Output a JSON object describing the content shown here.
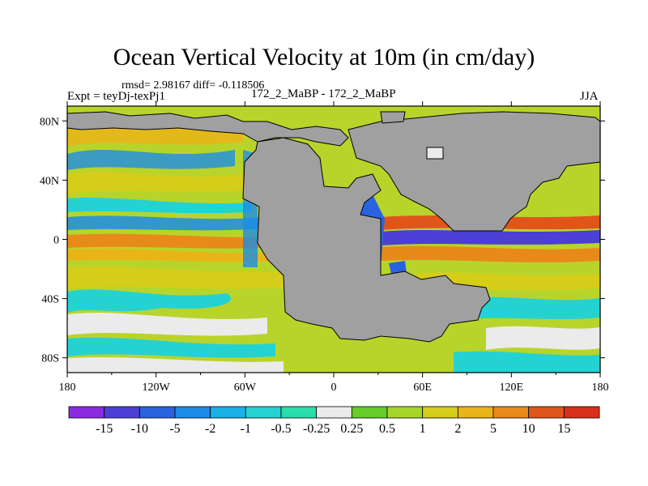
{
  "chart_data": {
    "type": "heatmap",
    "title": "Ocean Vertical Velocity at 10m (in cm/day)",
    "stats_label": "rmsd= 2.98167 diff= -0.118506",
    "experiment_label": "Expt = teyDj-texPj1",
    "comparison_label": "172_2_MaBP - 172_2_MaBP",
    "season_label": "JJA",
    "x_ticks": [
      "180",
      "120W",
      "60W",
      "0",
      "60E",
      "120E",
      "180"
    ],
    "x_tick_values": [
      -180,
      -120,
      -60,
      0,
      60,
      120,
      180
    ],
    "y_ticks": [
      "80N",
      "40N",
      "0",
      "40S",
      "80S"
    ],
    "y_tick_values": [
      80,
      40,
      0,
      -40,
      -80
    ],
    "xlim": [
      -180,
      180
    ],
    "ylim": [
      -90,
      90
    ],
    "colorbar": {
      "labels": [
        "-15",
        "-10",
        "-5",
        "-2",
        "-1",
        "-0.5",
        "-0.25",
        "0.25",
        "0.5",
        "1",
        "2",
        "5",
        "10",
        "15"
      ],
      "colors": [
        "#8a2be2",
        "#4b3fd6",
        "#2a63e0",
        "#1c8ce6",
        "#18b0e6",
        "#25d2d2",
        "#2adcaa",
        "#ebebeb",
        "#66cc2a",
        "#a6d62a",
        "#d6cc1a",
        "#eab418",
        "#e88a1a",
        "#e0561a",
        "#d8301a"
      ]
    },
    "land_color": "#a0a0a0"
  }
}
